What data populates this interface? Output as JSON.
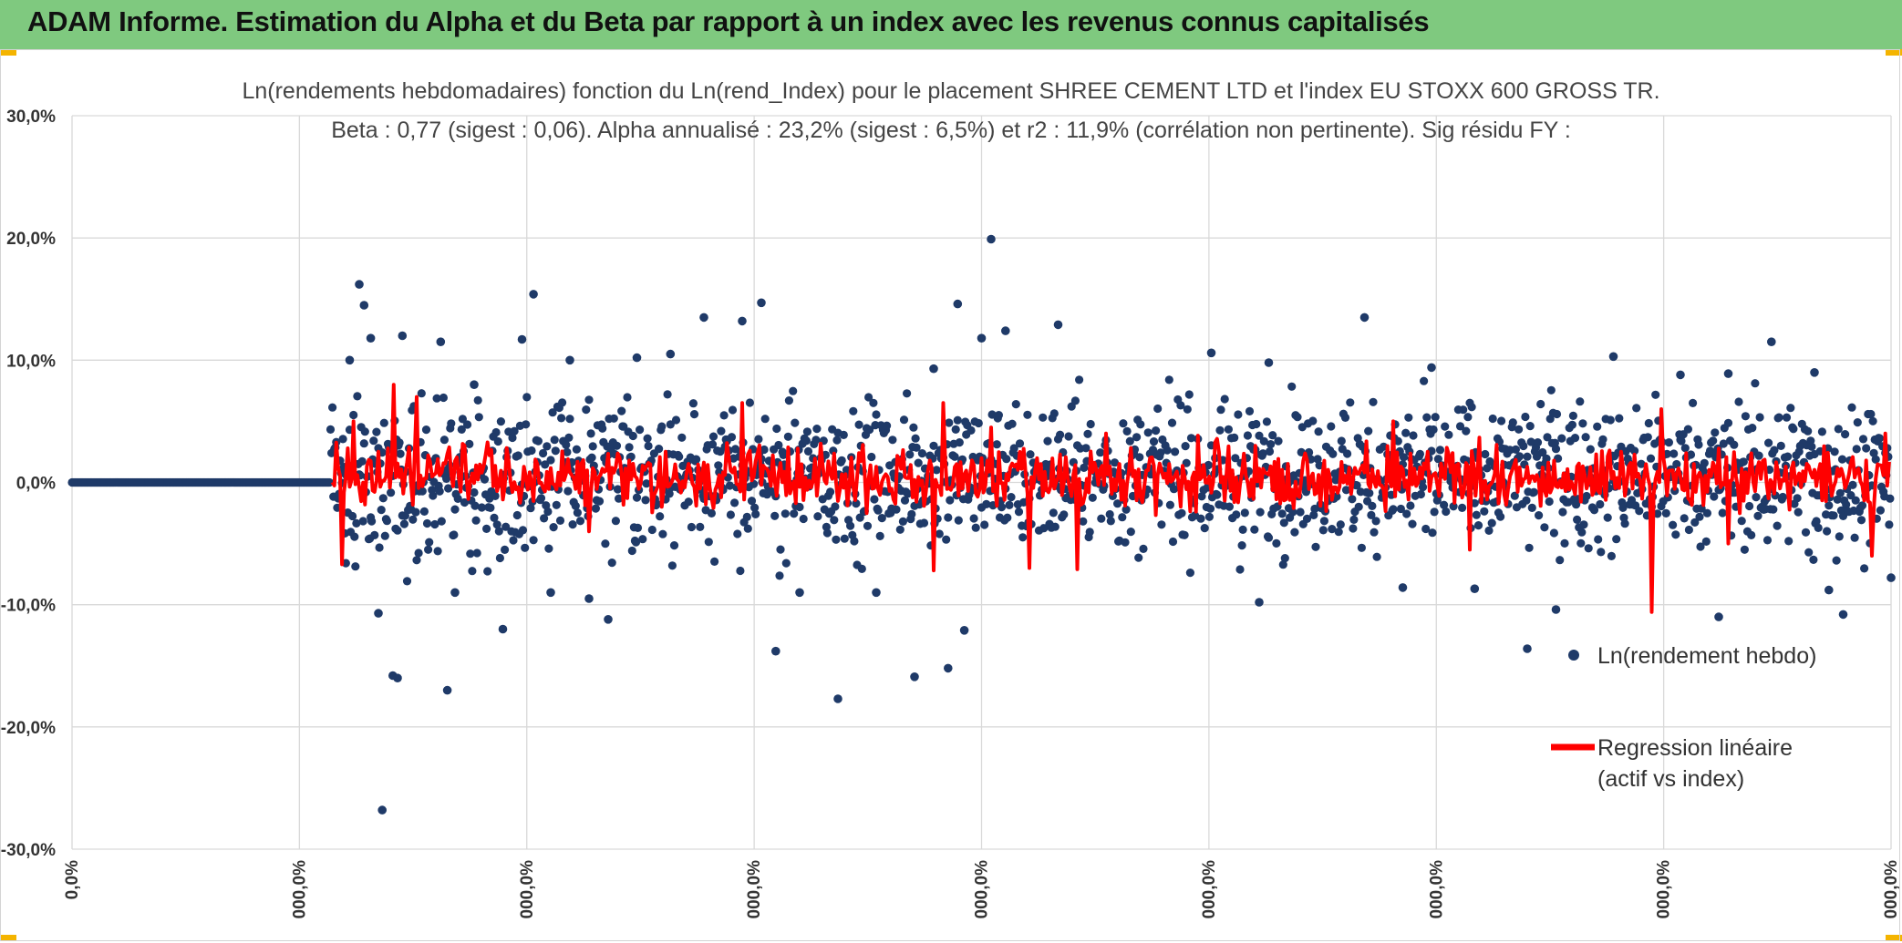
{
  "header": {
    "title": "ADAM Informe. Estimation du Alpha et du Beta par rapport à un index avec les revenus connus capitalisés"
  },
  "colors": {
    "banner": "#7fc97f",
    "points": "#1f3a68",
    "regression": "#ff0000",
    "grid": "#d9d9d9"
  },
  "chart_data": {
    "type": "scatter",
    "title_line1": "Ln(rendements hebdomadaires) fonction du Ln(rend_Index) pour le placement SHREE CEMENT LTD et l'index EU STOXX 600 GROSS TR.",
    "title_line2": "Beta : 0,77 (sigest : 0,06). Alpha annualisé : 23,2% (sigest : 6,5%) et r2 : 11,9% (corrélation non pertinente). Sig résidu FY :",
    "y_ticks": [
      "30,0%",
      "20,0%",
      "10,0%",
      "0,0%",
      "-10,0%",
      "-20,0%",
      "-30,0%"
    ],
    "y_tick_values": [
      30,
      20,
      10,
      0,
      -10,
      -20,
      -30
    ],
    "ylim": [
      -30,
      30
    ],
    "x_ticks": [
      "0,0%",
      "000,0%",
      "000,0%",
      "000,0%",
      "000,0%",
      "000,0%",
      "000,0%",
      "000,0%",
      "000,0%"
    ],
    "x_count": 1900,
    "grid": true,
    "legend_position": "right",
    "series": [
      {
        "name": "Ln(rendement hebdo)",
        "kind": "points",
        "zero_until_index": 270,
        "envelope_pct": 5.5,
        "outliers": [
          {
            "i": 290,
            "y": 10.0
          },
          {
            "i": 300,
            "y": 16.2
          },
          {
            "i": 305,
            "y": 14.5
          },
          {
            "i": 312,
            "y": 11.8
          },
          {
            "i": 320,
            "y": -10.7
          },
          {
            "i": 324,
            "y": -26.8
          },
          {
            "i": 335,
            "y": -15.8
          },
          {
            "i": 340,
            "y": -16.0
          },
          {
            "i": 345,
            "y": 12.0
          },
          {
            "i": 385,
            "y": 11.5
          },
          {
            "i": 392,
            "y": -17.0
          },
          {
            "i": 400,
            "y": -9.0
          },
          {
            "i": 420,
            "y": 8.0
          },
          {
            "i": 450,
            "y": -12.0
          },
          {
            "i": 470,
            "y": 11.7
          },
          {
            "i": 482,
            "y": 15.4
          },
          {
            "i": 500,
            "y": -9.0
          },
          {
            "i": 520,
            "y": 10.0
          },
          {
            "i": 540,
            "y": -9.5
          },
          {
            "i": 560,
            "y": -11.2
          },
          {
            "i": 590,
            "y": 10.2
          },
          {
            "i": 625,
            "y": 10.5
          },
          {
            "i": 660,
            "y": 13.5
          },
          {
            "i": 700,
            "y": 13.2
          },
          {
            "i": 720,
            "y": 14.7
          },
          {
            "i": 735,
            "y": -13.8
          },
          {
            "i": 760,
            "y": -9.0
          },
          {
            "i": 800,
            "y": -17.7
          },
          {
            "i": 840,
            "y": -9.0
          },
          {
            "i": 880,
            "y": -15.9
          },
          {
            "i": 900,
            "y": 9.3
          },
          {
            "i": 915,
            "y": -15.2
          },
          {
            "i": 925,
            "y": 14.6
          },
          {
            "i": 932,
            "y": -12.1
          },
          {
            "i": 950,
            "y": 11.8
          },
          {
            "i": 960,
            "y": 19.9
          },
          {
            "i": 975,
            "y": 12.4
          },
          {
            "i": 1030,
            "y": 12.9
          },
          {
            "i": 1190,
            "y": 10.6
          },
          {
            "i": 1240,
            "y": -9.8
          },
          {
            "i": 1250,
            "y": 9.8
          },
          {
            "i": 1350,
            "y": 13.5
          },
          {
            "i": 1390,
            "y": -8.6
          },
          {
            "i": 1420,
            "y": 9.4
          },
          {
            "i": 1465,
            "y": -8.7
          },
          {
            "i": 1520,
            "y": -13.6
          },
          {
            "i": 1550,
            "y": -10.4
          },
          {
            "i": 1610,
            "y": 10.3
          },
          {
            "i": 1680,
            "y": 8.8
          },
          {
            "i": 1720,
            "y": -11.0
          },
          {
            "i": 1730,
            "y": 8.9
          },
          {
            "i": 1775,
            "y": 11.5
          },
          {
            "i": 1820,
            "y": 9.0
          },
          {
            "i": 1835,
            "y": -8.8
          },
          {
            "i": 1850,
            "y": -10.8
          },
          {
            "i": 1900,
            "y": -7.8
          }
        ]
      },
      {
        "name": "Regression linéaire (actif vs index)",
        "legend_line1": "Regression linéaire",
        "legend_line2": "(actif vs index)",
        "kind": "line",
        "spikes": [
          {
            "i": 282,
            "y": -6.7
          },
          {
            "i": 295,
            "y": 5.0
          },
          {
            "i": 335,
            "y": 8.0
          },
          {
            "i": 360,
            "y": 7.0
          },
          {
            "i": 410,
            "y": 3.0
          },
          {
            "i": 540,
            "y": -4.0
          },
          {
            "i": 700,
            "y": 6.5
          },
          {
            "i": 900,
            "y": -7.2
          },
          {
            "i": 910,
            "y": 6.5
          },
          {
            "i": 960,
            "y": 4.5
          },
          {
            "i": 1000,
            "y": -7.0
          },
          {
            "i": 1050,
            "y": -7.1
          },
          {
            "i": 1080,
            "y": 4.0
          },
          {
            "i": 1380,
            "y": 5.0
          },
          {
            "i": 1460,
            "y": -5.5
          },
          {
            "i": 1650,
            "y": -10.6
          },
          {
            "i": 1660,
            "y": 6.0
          },
          {
            "i": 1730,
            "y": -5.0
          },
          {
            "i": 1880,
            "y": -6.0
          },
          {
            "i": 1895,
            "y": 4.0
          }
        ]
      }
    ]
  }
}
